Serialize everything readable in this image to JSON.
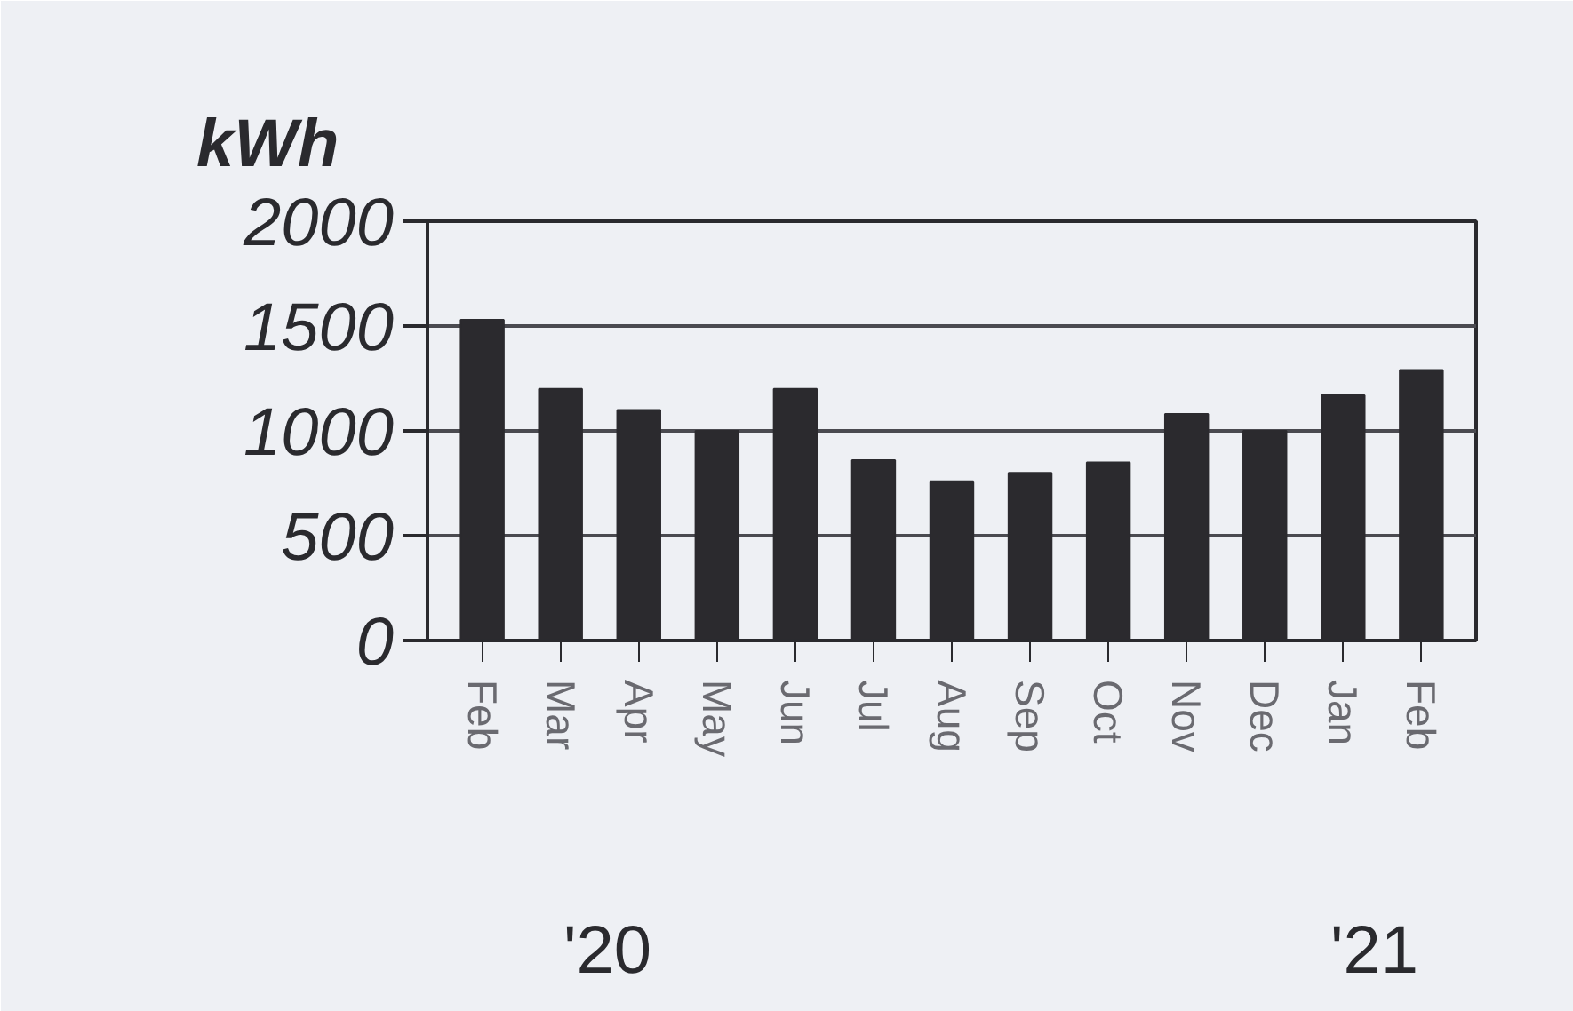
{
  "chart_data": {
    "type": "bar",
    "ylabel": "kWh",
    "categories": [
      "Feb",
      "Mar",
      "Apr",
      "May",
      "Jun",
      "Jul",
      "Aug",
      "Sep",
      "Oct",
      "Nov",
      "Dec",
      "Jan",
      "Feb"
    ],
    "values": [
      1530,
      1200,
      1100,
      1000,
      1200,
      860,
      760,
      800,
      850,
      1080,
      1000,
      1170,
      1290
    ],
    "color": "#2b2a2e",
    "ylim": [
      0,
      2000
    ],
    "yticks": [
      0,
      500,
      1000,
      1500,
      2000
    ],
    "grid": "y",
    "annotations": [
      "'20",
      "'21"
    ]
  }
}
